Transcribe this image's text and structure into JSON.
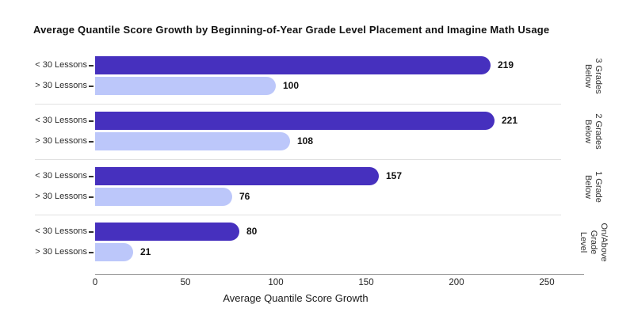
{
  "title": "Average Quantile Score Growth by Beginning-of-Year Grade Level Placement and Imagine Math Usage",
  "chart_data": {
    "type": "bar",
    "orientation": "horizontal",
    "title": "Average Quantile Score Growth by Beginning-of-Year Grade Level Placement and Imagine Math Usage",
    "xlabel": "Average Quantile Score Growth",
    "xticks": [
      0,
      50,
      100,
      150,
      200,
      250
    ],
    "xlim": [
      0,
      270
    ],
    "grid": false,
    "legend": "none",
    "bar_labels": [
      "< 30 Lessons",
      "> 30 Lessons"
    ],
    "series": [
      {
        "name": "< 30 Lessons",
        "color": "#4630be",
        "values": [
          219,
          221,
          157,
          80
        ]
      },
      {
        "name": "> 30 Lessons",
        "color": "#bcc7fa",
        "values": [
          100,
          108,
          76,
          21
        ]
      }
    ],
    "groups": [
      {
        "label": "3 Grades Below",
        "label_lines": "3 Grades\nBelow",
        "values": [
          219,
          100
        ]
      },
      {
        "label": "2 Grades Below",
        "label_lines": "2 Grades\nBelow",
        "values": [
          221,
          108
        ]
      },
      {
        "label": "1 Grade Below",
        "label_lines": "1 Grade\nBelow",
        "values": [
          157,
          76
        ]
      },
      {
        "label": "On/Above Grade Level",
        "label_lines": "On/Above\nGrade Level",
        "values": [
          80,
          21
        ]
      }
    ],
    "colors": {
      "dark_bar": "#4630be",
      "light_bar": "#bcc7fa",
      "separator": "#e1e1e1",
      "axis": "#9b9b9b",
      "text": "#111111"
    }
  }
}
